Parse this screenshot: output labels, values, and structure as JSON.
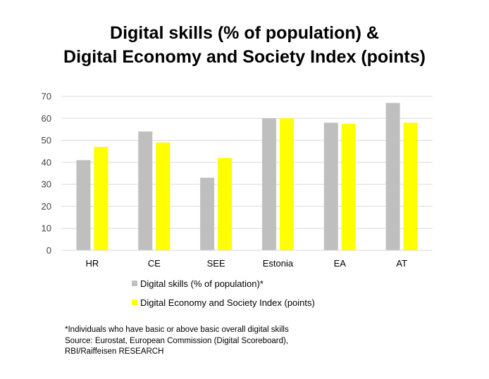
{
  "title_line1": "Digital skills (% of population) &",
  "title_line2": "Digital Economy and Society Index (points)",
  "chart_data": {
    "type": "bar",
    "categories": [
      "HR",
      "CE",
      "SEE",
      "Estonia",
      "EA",
      "AT"
    ],
    "series": [
      {
        "name": "Digital skills (% of population)*",
        "color": "#bfbfbf",
        "values": [
          41,
          54,
          33,
          60,
          58,
          67
        ]
      },
      {
        "name": "Digital Economy and Society Index (points)",
        "color": "#ffff00",
        "values": [
          47,
          49,
          42,
          60,
          57.5,
          58
        ]
      }
    ],
    "ylim": [
      0,
      70
    ],
    "yticks": [
      "0",
      "10",
      "20",
      "30",
      "40",
      "50",
      "60",
      "70"
    ],
    "grid": true,
    "legend_position": "bottom"
  },
  "footnote": {
    "line1": "*Individuals who have basic or above basic overall digital skills",
    "line2": "Source: Eurostat, European Commission (Digital Scoreboard),",
    "line3": "RBI/Raiffeisen RESEARCH"
  }
}
